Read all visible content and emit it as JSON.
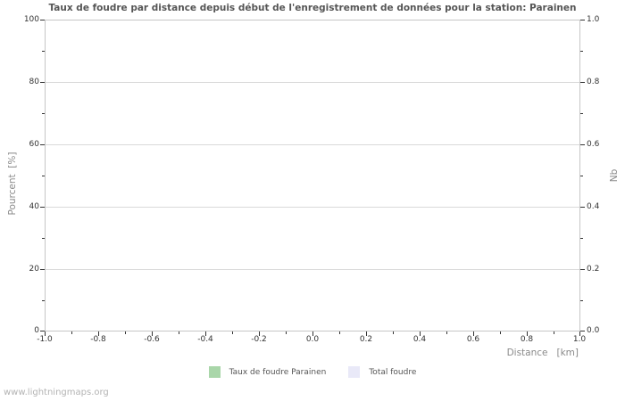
{
  "page": {
    "watermark": "www.lightningmaps.org"
  },
  "chart_data": {
    "type": "bar",
    "title": "Taux de foudre par distance depuis début de l'enregistrement de données pour la station: Parainen",
    "xlabel": "Distance   [km]",
    "ylabel_left": "Pourcent  [%]",
    "ylabel_right": "Nb",
    "xlim": [
      -1.0,
      1.0
    ],
    "ylim_left": [
      0,
      100
    ],
    "ylim_right": [
      0.0,
      1.0
    ],
    "x_tick_values": [
      -1.0,
      -0.8,
      -0.6,
      -0.4,
      -0.2,
      0.0,
      0.2,
      0.4,
      0.6,
      0.8,
      1.0
    ],
    "x_tick_labels": [
      "-1.0",
      "-0.8",
      "-0.6",
      "-0.4",
      "-0.2",
      "0.0",
      "0.2",
      "0.4",
      "0.6",
      "0.8",
      "1.0"
    ],
    "y_left_tick_values": [
      0,
      20,
      40,
      60,
      80,
      100
    ],
    "y_left_tick_labels": [
      "0",
      "20",
      "40",
      "60",
      "80",
      "100"
    ],
    "y_right_tick_values": [
      0.0,
      0.2,
      0.4,
      0.6,
      0.8,
      1.0
    ],
    "y_right_tick_labels": [
      "0.0",
      "0.2",
      "0.4",
      "0.6",
      "0.8",
      "1.0"
    ],
    "grid": "horizontal-major-only",
    "legend_position": "bottom-center",
    "legend": [
      {
        "label": "Taux de foudre Parainen",
        "color": "#a9d6a9"
      },
      {
        "label": "Total foudre",
        "color": "#e9e9f8"
      }
    ],
    "series": [
      {
        "name": "Taux de foudre Parainen",
        "axis": "left",
        "x": [],
        "values": []
      },
      {
        "name": "Total foudre",
        "axis": "right",
        "x": [],
        "values": []
      }
    ],
    "colors": {
      "frame": "#c6c6c6",
      "gridline": "#d9d9d9",
      "tick": "#333333",
      "tick_label": "#333333",
      "axis_label": "#8a8a8a",
      "title": "#555555",
      "legend_text": "#555555",
      "watermark": "#b3b3b3",
      "background": "#ffffff"
    }
  }
}
